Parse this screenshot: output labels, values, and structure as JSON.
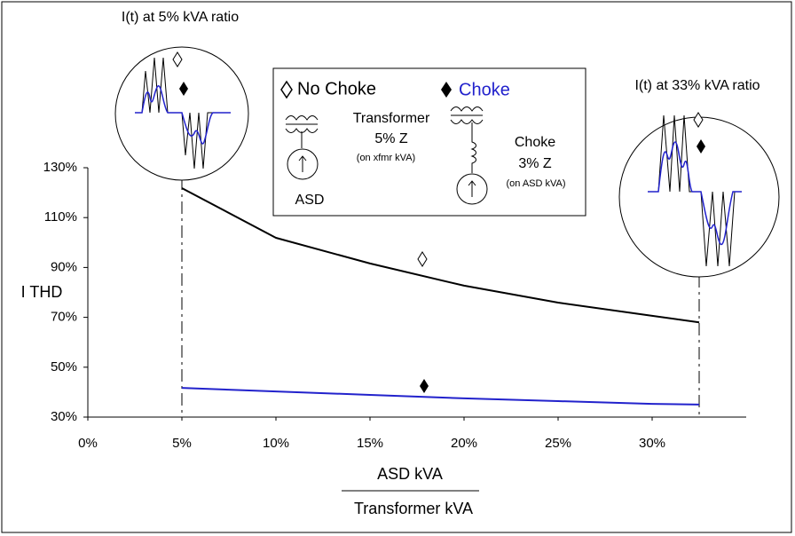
{
  "chart_data": {
    "type": "line",
    "y_label": "I THD",
    "x_label_numerator": "ASD kVA",
    "x_label_denominator": "Transformer kVA",
    "annotations": [
      "I(t) at 5% kVA ratio",
      "I(t) at 33% kVA ratio"
    ],
    "diagram_labels": [
      "Transformer",
      "5% Z",
      "(on xfmr kVA)",
      "ASD",
      "Choke",
      "3% Z",
      "(on ASD kVA)"
    ],
    "x": [
      5,
      10,
      15,
      20,
      25,
      30,
      32.5
    ],
    "series": [
      {
        "name": "No Choke",
        "color": "#000000",
        "values": [
          121.8,
          101.9,
          91.6,
          82.7,
          75.9,
          70.6,
          68
        ]
      },
      {
        "name": "Choke",
        "color": "#2222cc",
        "values": [
          41.7,
          40.3,
          38.9,
          37.5,
          36.4,
          35.3,
          35
        ]
      }
    ],
    "xlim": [
      0,
      35
    ],
    "xticks": [
      {
        "value": 0,
        "label": "0%"
      },
      {
        "value": 5,
        "label": "5%"
      },
      {
        "value": 10,
        "label": "10%"
      },
      {
        "value": 15,
        "label": "15%"
      },
      {
        "value": 20,
        "label": "20%"
      },
      {
        "value": 25,
        "label": "25%"
      },
      {
        "value": 30,
        "label": "30%"
      }
    ],
    "ylim": [
      30,
      130
    ],
    "yticks": [
      {
        "value": 30,
        "label": "30%"
      },
      {
        "value": 50,
        "label": "50%"
      },
      {
        "value": 70,
        "label": "70%"
      },
      {
        "value": 90,
        "label": "90%"
      },
      {
        "value": 110,
        "label": "110%"
      },
      {
        "value": 130,
        "label": "130%"
      }
    ],
    "grid": false
  }
}
